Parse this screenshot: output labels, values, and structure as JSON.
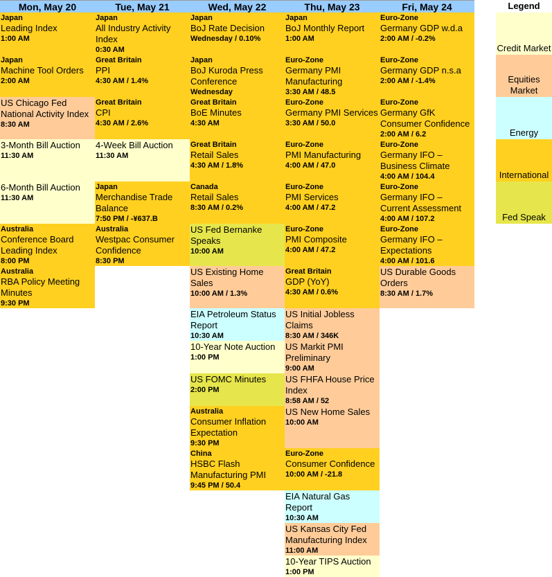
{
  "colors": {
    "header": "#99ccff",
    "credit": "#ffffcc",
    "equities": "#ffcc99",
    "energy": "#ccffff",
    "international": "#ffd020",
    "fed": "#e6e64c"
  },
  "legend": {
    "title": "Legend",
    "items": [
      {
        "label": "Credit Market",
        "category": "credit"
      },
      {
        "label": "Equities Market",
        "category": "equities"
      },
      {
        "label": "Energy",
        "category": "energy"
      },
      {
        "label": "International",
        "category": "international"
      },
      {
        "label": "Fed Speak",
        "category": "fed"
      }
    ]
  },
  "days": [
    {
      "label": "Mon, May 20",
      "events": [
        {
          "country": "Japan",
          "title": "Leading Index",
          "time": "1:00 AM",
          "category": "international"
        },
        {
          "country": "Japan",
          "title": "Machine Tool Orders",
          "time": "2:00 AM",
          "category": "international"
        },
        {
          "country": "",
          "title": "US Chicago Fed National Activity Index",
          "time": "8:30 AM",
          "category": "equities"
        },
        {
          "country": "",
          "title": "3-Month Bill Auction",
          "time": "11:30 AM",
          "category": "credit"
        },
        {
          "country": "",
          "title": "6-Month Bill Auction",
          "time": "11:30 AM",
          "category": "credit"
        },
        {
          "country": "Australia",
          "title": "Conference Board Leading Index",
          "time": "8:00 PM",
          "category": "international"
        },
        {
          "country": "Australia",
          "title": "RBA Policy Meeting Minutes",
          "time": "9:30 PM",
          "category": "international"
        }
      ]
    },
    {
      "label": "Tue, May 21",
      "events": [
        {
          "country": "Japan",
          "title": "All Industry Activity Index",
          "time": "0:30 AM",
          "category": "international"
        },
        {
          "country": "Great Britain",
          "title": "PPI",
          "time": "4:30 AM / 1.4%",
          "category": "international"
        },
        {
          "country": "Great Britain",
          "title": "CPI",
          "time": "4:30 AM / 2.6%",
          "category": "international"
        },
        {
          "country": "",
          "title": "4-Week Bill Auction",
          "time": "11:30 AM",
          "category": "credit"
        },
        {
          "country": "Japan",
          "title": "Merchandise Trade Balance",
          "time": "7:50 PM / -¥637.B",
          "category": "international"
        },
        {
          "country": "Australia",
          "title": "Westpac Consumer Confidence",
          "time": "8:30 PM",
          "category": "international"
        }
      ]
    },
    {
      "label": "Wed, May 22",
      "events": [
        {
          "country": "Japan",
          "title": "BoJ Rate Decision",
          "time": "Wednesday / 0.10%",
          "category": "international"
        },
        {
          "country": "Japan",
          "title": "BoJ Kuroda Press Conference",
          "time": "Wednesday",
          "category": "international"
        },
        {
          "country": "Great Britain",
          "title": "BoE Minutes",
          "time": "4:30 AM",
          "category": "international"
        },
        {
          "country": "Great Britain",
          "title": "Retail Sales",
          "time": "4:30 AM / 1.8%",
          "category": "international"
        },
        {
          "country": "Canada",
          "title": "Retail Sales",
          "time": "8:30 AM / 0.2%",
          "category": "international"
        },
        {
          "country": "",
          "title": "US Fed Bernanke Speaks",
          "time": "10:00 AM",
          "category": "fed"
        },
        {
          "country": "",
          "title": "US Existing Home Sales",
          "time": "10:00 AM / 1.3%",
          "category": "equities"
        },
        {
          "country": "",
          "title": "EIA Petroleum Status Report",
          "time": "10:30 AM",
          "category": "energy"
        },
        {
          "country": "",
          "title": "10-Year Note Auction",
          "time": "1:00 PM",
          "category": "credit"
        },
        {
          "country": "",
          "title": "US FOMC Minutes",
          "time": "2:00 PM",
          "category": "fed"
        },
        {
          "country": "Australia",
          "title": "Consumer Inflation Expectation",
          "time": "9:30 PM",
          "category": "international"
        },
        {
          "country": "China",
          "title": "HSBC Flash Manufacturing PMI",
          "time": "9:45 PM / 50.4",
          "category": "international"
        }
      ]
    },
    {
      "label": "Thu, May 23",
      "events": [
        {
          "country": "Japan",
          "title": "BoJ Monthly Report",
          "time": "1:00 AM",
          "category": "international"
        },
        {
          "country": "Euro-Zone",
          "title": "Germany PMI Manufacturing",
          "time": "3:30 AM / 48.5",
          "category": "international"
        },
        {
          "country": "Euro-Zone",
          "title": "Germany PMI Services",
          "time": "3:30 AM / 50.0",
          "category": "international"
        },
        {
          "country": "Euro-Zone",
          "title": "PMI Manufacturing",
          "time": "4:00 AM / 47.0",
          "category": "international"
        },
        {
          "country": "Euro-Zone",
          "title": "PMI Services",
          "time": "4:00 AM / 47.2",
          "category": "international"
        },
        {
          "country": "Euro-Zone",
          "title": "PMI Composite",
          "time": "4:00 AM / 47.2",
          "category": "international"
        },
        {
          "country": "Great Britain",
          "title": "GDP (YoY)",
          "time": "4:30 AM / 0.6%",
          "category": "international"
        },
        {
          "country": "",
          "title": "US Initial Jobless Claims",
          "time": "8:30 AM / 346K",
          "category": "equities"
        },
        {
          "country": "",
          "title": "US Markit PMI Preliminary",
          "time": "9:00 AM",
          "category": "equities"
        },
        {
          "country": "",
          "title": "US FHFA House Price Index",
          "time": "8:58 AM / 52",
          "category": "equities"
        },
        {
          "country": "",
          "title": "US New Home Sales",
          "time": "10:00 AM",
          "category": "equities"
        },
        {
          "country": "Euro-Zone",
          "title": "Consumer Confidence",
          "time": "10:00 AM / -21.8",
          "category": "international"
        },
        {
          "country": "",
          "title": "EIA Natural Gas Report",
          "time": "10:30 AM",
          "category": "energy"
        },
        {
          "country": "",
          "title": "US Kansas City Fed Manufacturing Index",
          "time": "11:00 AM",
          "category": "equities"
        },
        {
          "country": "",
          "title": "10-Year TIPS Auction",
          "time": "1:00 PM",
          "category": "credit"
        }
      ]
    },
    {
      "label": "Fri, May 24",
      "events": [
        {
          "country": "Euro-Zone",
          "title": "Germany GDP w.d.a",
          "time": "2:00 AM / -0.2%",
          "category": "international"
        },
        {
          "country": "Euro-Zone",
          "title": "Germany GDP n.s.a",
          "time": "2:00 AM / -1.4%",
          "category": "international"
        },
        {
          "country": "Euro-Zone",
          "title": "Germany GfK Consumer Confidence",
          "time": "2:00 AM / 6.2",
          "category": "international"
        },
        {
          "country": "Euro-Zone",
          "title": "Germany IFO – Business Climate",
          "time": "4:00 AM / 104.4",
          "category": "international"
        },
        {
          "country": "Euro-Zone",
          "title": "Germany IFO – Current Assessment",
          "time": "4:00 AM / 107.2",
          "category": "international"
        },
        {
          "country": "Euro-Zone",
          "title": "Germany IFO – Expectations",
          "time": "4:00 AM / 101.6",
          "category": "international"
        },
        {
          "country": "",
          "title": "US Durable Goods Orders",
          "time": "8:30 AM / 1.7%",
          "category": "equities"
        }
      ]
    }
  ]
}
